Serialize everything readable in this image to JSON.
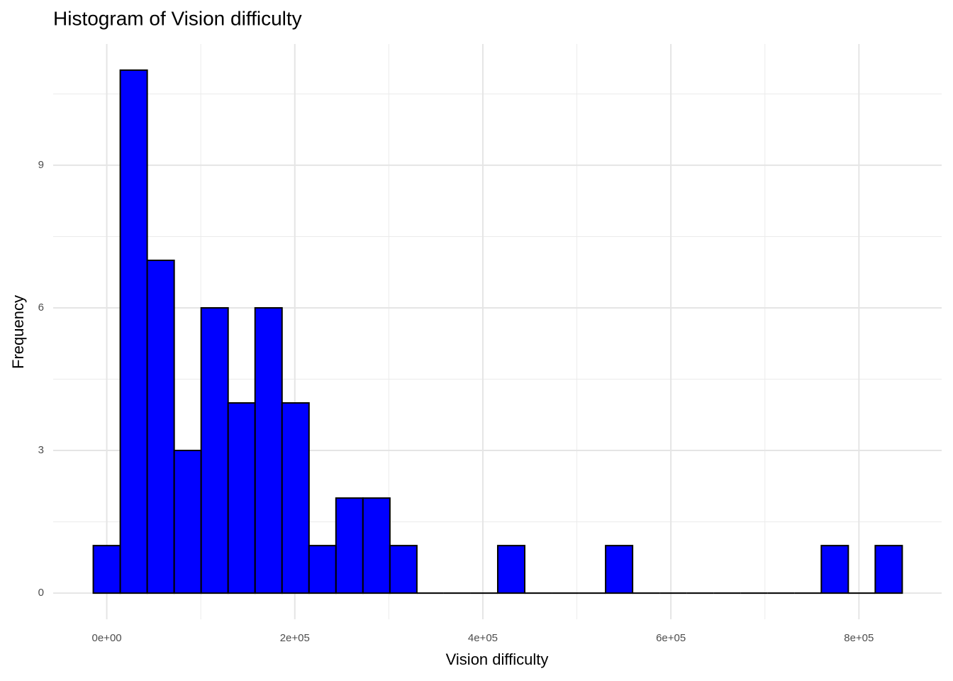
{
  "chart_data": {
    "type": "histogram",
    "title": "Histogram of Vision difficulty",
    "x_label": "Vision difficulty",
    "y_label": "Frequency",
    "bins": [
      -14340,
      14340,
      43020,
      71700,
      100380,
      129060,
      157740,
      186420,
      215100,
      243780,
      272460,
      301140,
      329820,
      358500,
      387180,
      415860,
      444540,
      473220,
      501900,
      530580,
      559260,
      587940,
      616620,
      645300,
      673980,
      702660,
      731340,
      760020,
      788700,
      817380,
      846060
    ],
    "counts": [
      1,
      11,
      7,
      3,
      6,
      4,
      6,
      4,
      1,
      2,
      2,
      1,
      0,
      0,
      0,
      1,
      0,
      0,
      0,
      1,
      0,
      0,
      0,
      0,
      0,
      0,
      0,
      1,
      0,
      1
    ],
    "color": "#0000ff",
    "edge_color": "#000000",
    "xlim": [
      -57000,
      888000
    ],
    "ylim": [
      -0.55,
      11.55
    ],
    "xticks": [
      {
        "value": 0,
        "label": "0e+00"
      },
      {
        "value": 200000,
        "label": "2e+05"
      },
      {
        "value": 400000,
        "label": "4e+05"
      },
      {
        "value": 600000,
        "label": "6e+05"
      },
      {
        "value": 800000,
        "label": "8e+05"
      }
    ],
    "yticks": [
      0,
      3,
      6,
      9
    ],
    "x_minor_grid": [
      100000,
      300000,
      500000,
      700000
    ],
    "y_minor_grid": [
      1.5,
      4.5,
      7.5,
      10.5
    ],
    "grid": true
  }
}
